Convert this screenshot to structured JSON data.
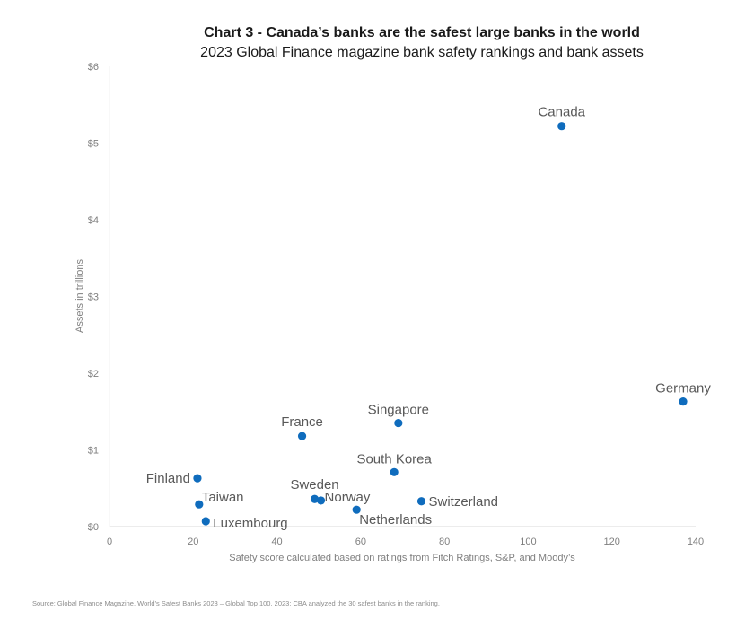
{
  "chart_data": {
    "type": "scatter",
    "title": "Chart 3 - Canada’s banks are the safest large banks in the world",
    "subtitle": "2023 Global Finance magazine bank safety rankings and bank assets",
    "xlabel": "Safety score calculated  based on ratings  from Fitch Ratings, S&P, and Moody’s",
    "ylabel": "Assets in trillions",
    "xlim": [
      0,
      140
    ],
    "ylim": [
      0,
      6
    ],
    "xticks": [
      "0",
      "20",
      "40",
      "60",
      "80",
      "100",
      "120",
      "140"
    ],
    "yticks": [
      "$0",
      "$1",
      "$2",
      "$3",
      "$4",
      "$5",
      "$6"
    ],
    "grid": false,
    "marker_color": "#0f6cbd",
    "points": [
      {
        "label": "Canada",
        "x": 108,
        "y": 5.22
      },
      {
        "label": "Germany",
        "x": 137,
        "y": 1.63
      },
      {
        "label": "Singapore",
        "x": 69,
        "y": 1.35
      },
      {
        "label": "France",
        "x": 46,
        "y": 1.18
      },
      {
        "label": "South Korea",
        "x": 68,
        "y": 0.71
      },
      {
        "label": "Finland",
        "x": 21,
        "y": 0.63
      },
      {
        "label": "Taiwan",
        "x": 21.4,
        "y": 0.29
      },
      {
        "label": "Luxembourg",
        "x": 23,
        "y": 0.07
      },
      {
        "label": "Sweden",
        "x": 49,
        "y": 0.36
      },
      {
        "label": "Norway",
        "x": 50.5,
        "y": 0.34
      },
      {
        "label": "Netherlands",
        "x": 59,
        "y": 0.22
      },
      {
        "label": "Switzerland",
        "x": 74.5,
        "y": 0.33
      }
    ]
  },
  "source": "Source: Global Finance Magazine, World's Safest Banks 2023 – Global Top 100, 2023; CBA analyzed the 30 safest banks in the ranking."
}
